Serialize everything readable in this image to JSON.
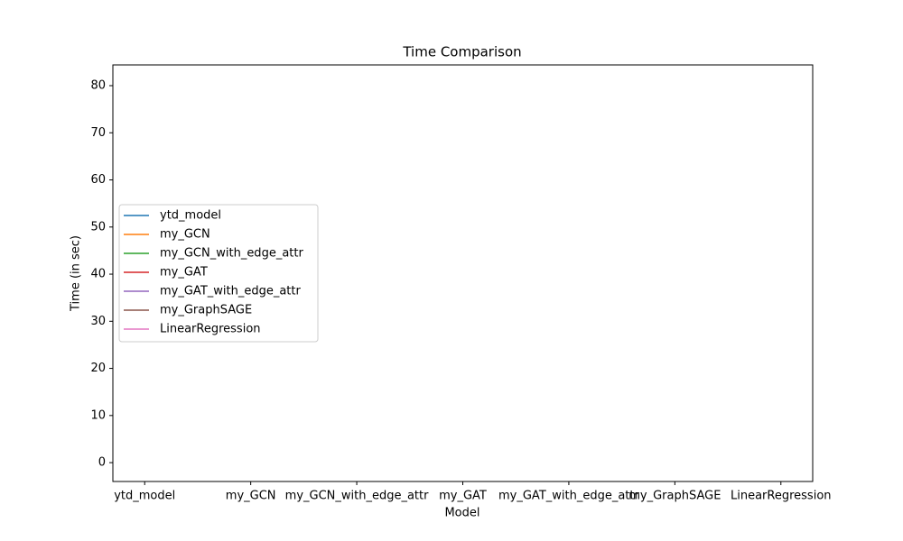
{
  "chart_data": {
    "type": "line",
    "title": "Time Comparison",
    "xlabel": "Model",
    "ylabel": "Time (in sec)",
    "categories": [
      "ytd_model",
      "my_GCN",
      "my_GCN_with_edge_attr",
      "my_GAT",
      "my_GAT_with_edge_attr",
      "my_GraphSAGE",
      "LinearRegression"
    ],
    "series": [
      {
        "name": "ytd_model",
        "color": "#1f77b4",
        "values": [
          null,
          null,
          null,
          null,
          null,
          null,
          null
        ]
      },
      {
        "name": "my_GCN",
        "color": "#ff7f0e",
        "values": [
          null,
          null,
          null,
          null,
          null,
          null,
          null
        ]
      },
      {
        "name": "my_GCN_with_edge_attr",
        "color": "#2ca02c",
        "values": [
          null,
          null,
          null,
          null,
          null,
          null,
          null
        ]
      },
      {
        "name": "my_GAT",
        "color": "#d62728",
        "values": [
          null,
          null,
          null,
          null,
          null,
          null,
          null
        ]
      },
      {
        "name": "my_GAT_with_edge_attr",
        "color": "#9467bd",
        "values": [
          null,
          null,
          null,
          null,
          null,
          null,
          null
        ]
      },
      {
        "name": "my_GraphSAGE",
        "color": "#8c564b",
        "values": [
          null,
          null,
          null,
          null,
          null,
          null,
          null
        ]
      },
      {
        "name": "LinearRegression",
        "color": "#e377c2",
        "values": [
          null,
          null,
          null,
          null,
          null,
          null,
          null
        ]
      }
    ],
    "ylim": [
      -4,
      84.4
    ],
    "yticks": [
      0,
      10,
      20,
      30,
      40,
      50,
      60,
      70,
      80
    ],
    "legend": "center left",
    "grid": false
  }
}
